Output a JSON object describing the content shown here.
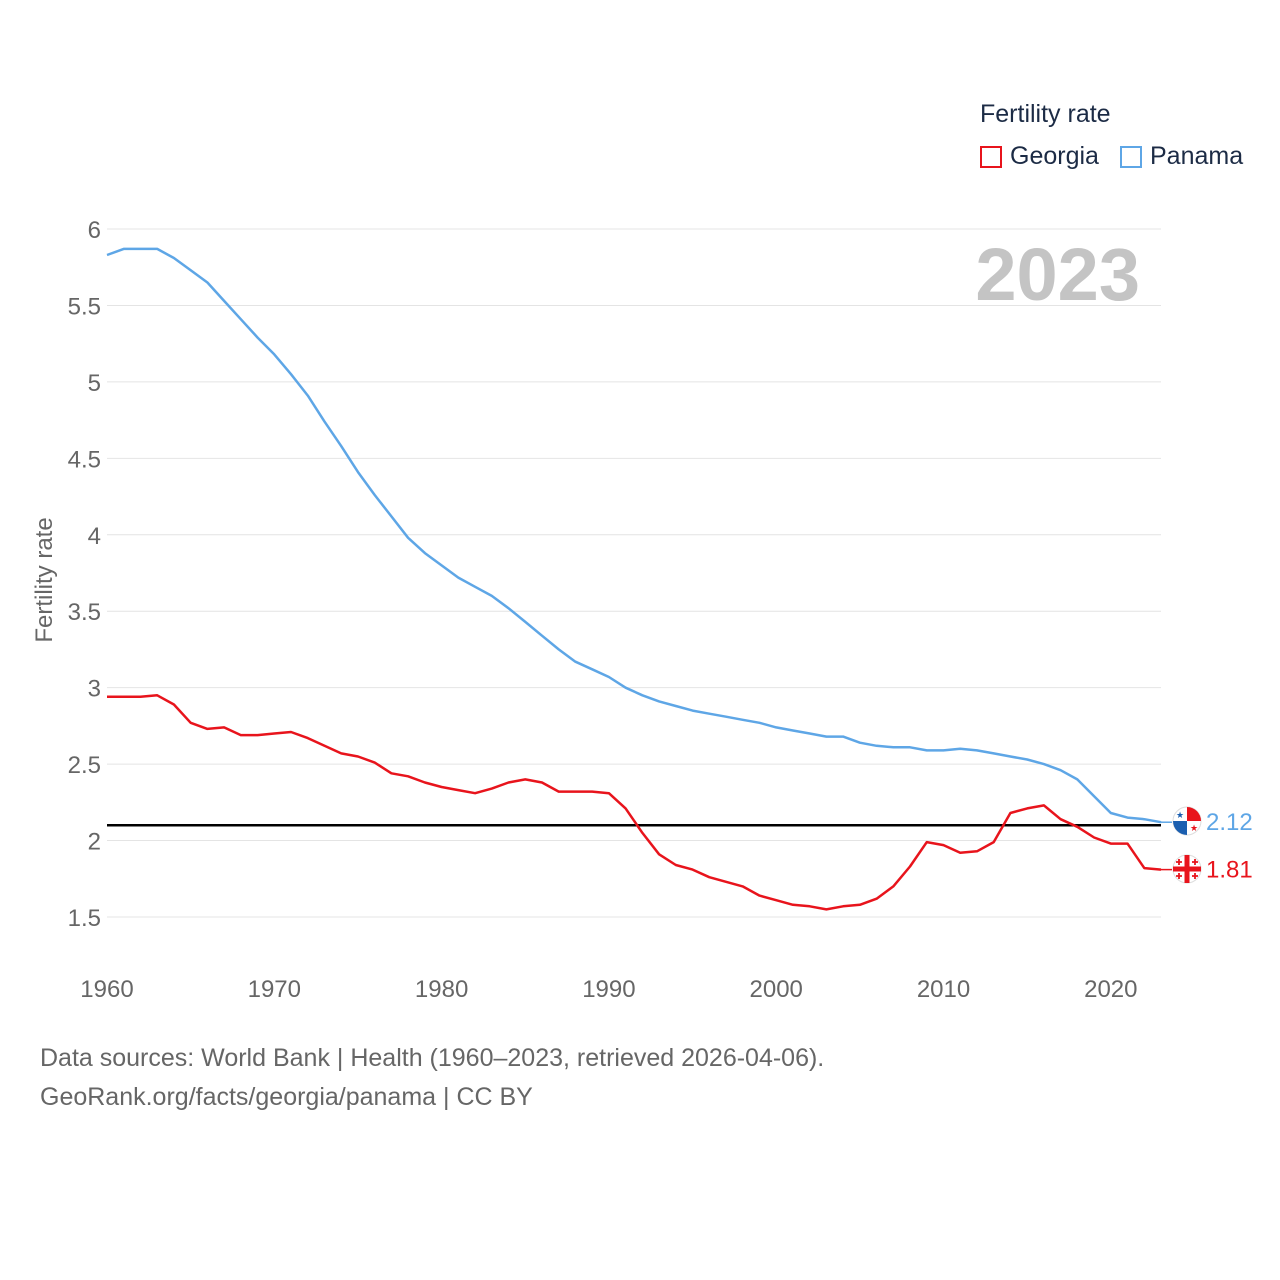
{
  "legend": {
    "title": "Fertility rate",
    "items": [
      {
        "label": "Georgia",
        "color": "#e8141c"
      },
      {
        "label": "Panama",
        "color": "#5ea6e6"
      }
    ]
  },
  "year_label": "2023",
  "source": {
    "line1": "Data sources: World Bank | Health (1960–2023, retrieved 2026-04-06).",
    "line2": "GeoRank.org/facts/georgia/panama | CC BY"
  },
  "chart_data": {
    "type": "line",
    "title": "",
    "xlabel": "",
    "ylabel": "Fertility rate",
    "xlim": [
      1960,
      2023
    ],
    "ylim": [
      1.5,
      6
    ],
    "x_ticks": [
      1960,
      1970,
      1980,
      1990,
      2000,
      2010,
      2020
    ],
    "y_ticks": [
      1.5,
      2,
      2.5,
      3,
      3.5,
      4,
      4.5,
      5,
      5.5,
      6
    ],
    "y_tick_labels": [
      "1.5",
      "2",
      "2.5",
      "3",
      "3.5",
      "4",
      "4.5",
      "5",
      "5.5",
      "6"
    ],
    "reference_line": {
      "y": 2.1,
      "color": "#000000"
    },
    "x": [
      1960,
      1961,
      1962,
      1963,
      1964,
      1965,
      1966,
      1967,
      1968,
      1969,
      1970,
      1971,
      1972,
      1973,
      1974,
      1975,
      1976,
      1977,
      1978,
      1979,
      1980,
      1981,
      1982,
      1983,
      1984,
      1985,
      1986,
      1987,
      1988,
      1989,
      1990,
      1991,
      1992,
      1993,
      1994,
      1995,
      1996,
      1997,
      1998,
      1999,
      2000,
      2001,
      2002,
      2003,
      2004,
      2005,
      2006,
      2007,
      2008,
      2009,
      2010,
      2011,
      2012,
      2013,
      2014,
      2015,
      2016,
      2017,
      2018,
      2019,
      2020,
      2021,
      2022,
      2023
    ],
    "series": [
      {
        "name": "Georgia",
        "color": "#e8141c",
        "end_label": "1.81",
        "values": [
          2.94,
          2.94,
          2.94,
          2.95,
          2.89,
          2.77,
          2.73,
          2.74,
          2.69,
          2.69,
          2.7,
          2.71,
          2.67,
          2.62,
          2.57,
          2.55,
          2.51,
          2.44,
          2.42,
          2.38,
          2.35,
          2.33,
          2.31,
          2.34,
          2.38,
          2.4,
          2.38,
          2.32,
          2.32,
          2.32,
          2.31,
          2.21,
          2.05,
          1.91,
          1.84,
          1.81,
          1.76,
          1.73,
          1.7,
          1.64,
          1.61,
          1.58,
          1.57,
          1.55,
          1.57,
          1.58,
          1.62,
          1.7,
          1.83,
          1.99,
          1.97,
          1.92,
          1.93,
          1.99,
          2.18,
          2.21,
          2.23,
          2.14,
          2.09,
          2.02,
          1.98,
          1.98,
          1.82,
          1.81
        ]
      },
      {
        "name": "Panama",
        "color": "#5ea6e6",
        "end_label": "2.12",
        "values": [
          5.83,
          5.87,
          5.87,
          5.87,
          5.81,
          5.73,
          5.65,
          5.53,
          5.41,
          5.29,
          5.18,
          5.05,
          4.91,
          4.74,
          4.58,
          4.41,
          4.26,
          4.12,
          3.98,
          3.88,
          3.8,
          3.72,
          3.66,
          3.6,
          3.52,
          3.43,
          3.34,
          3.25,
          3.17,
          3.12,
          3.07,
          3.0,
          2.95,
          2.91,
          2.88,
          2.85,
          2.83,
          2.81,
          2.79,
          2.77,
          2.74,
          2.72,
          2.7,
          2.68,
          2.68,
          2.64,
          2.62,
          2.61,
          2.61,
          2.59,
          2.59,
          2.6,
          2.59,
          2.57,
          2.55,
          2.53,
          2.5,
          2.46,
          2.4,
          2.29,
          2.18,
          2.15,
          2.14,
          2.12
        ]
      }
    ]
  }
}
